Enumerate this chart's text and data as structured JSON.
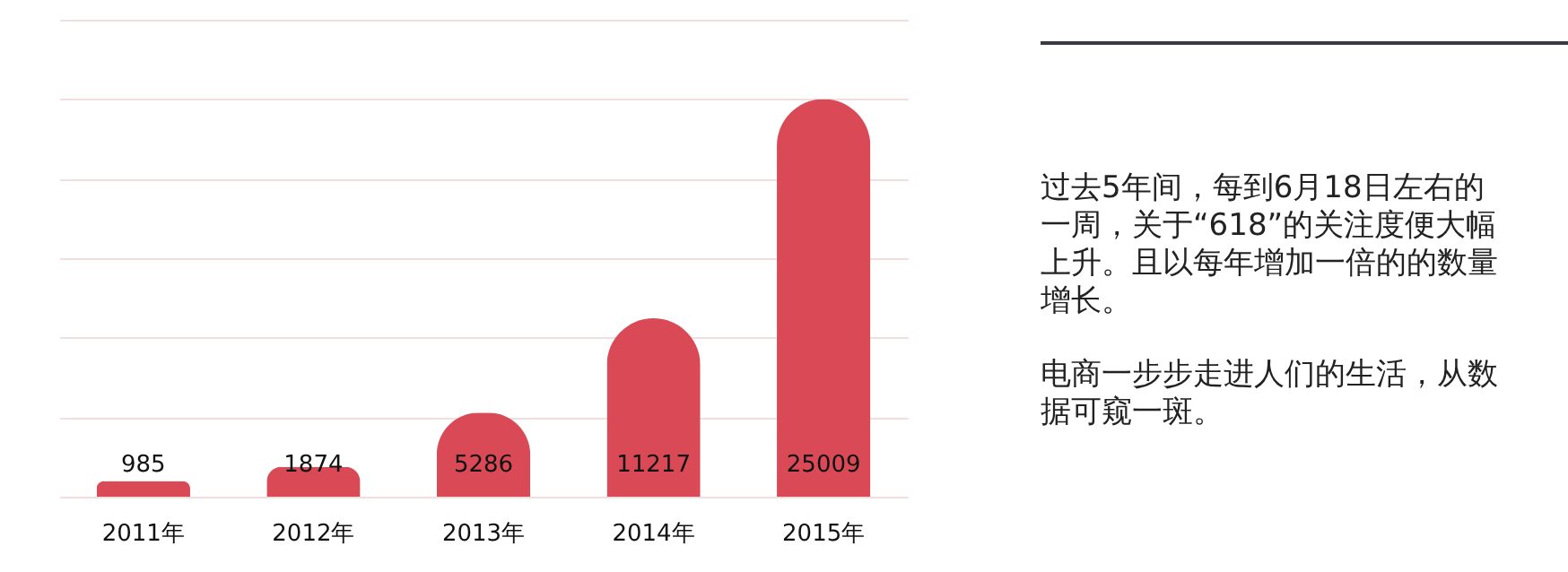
{
  "chart_data": {
    "type": "bar",
    "categories": [
      "2011年",
      "2012年",
      "2013年",
      "2014年",
      "2015年"
    ],
    "values": [
      985,
      1874,
      5286,
      11217,
      25009
    ],
    "color": "#d94a56",
    "ylim": [
      0,
      30000
    ],
    "yticks": [
      0,
      5000,
      10000,
      15000,
      20000,
      25000,
      30000
    ],
    "grid": "y",
    "tick_labels": "x",
    "data_labels": true,
    "annotations": [
      "过去5年间，每到6月18日左右的一周，关于“618”的关注度便大幅上升。且以每年增加一倍的的数量增长。",
      "电商一步步走进人们的生活，从数据可窥一斑。"
    ]
  }
}
